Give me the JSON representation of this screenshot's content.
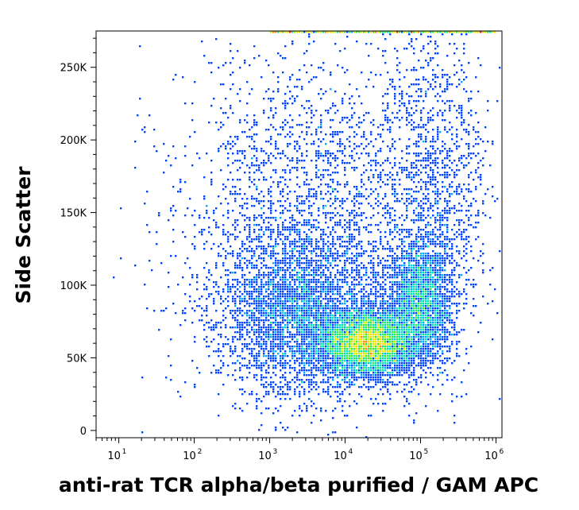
{
  "chart_data": {
    "type": "scatter",
    "subtype": "density-dot-plot",
    "xlabel": "anti-rat TCR alpha/beta purified / GAM APC",
    "ylabel": "Side Scatter",
    "x_scale": "log",
    "xlim": [
      5,
      1200000
    ],
    "ylim": [
      -5000,
      275000
    ],
    "x_ticks": [
      {
        "base": "10",
        "exp": "1",
        "value": 10
      },
      {
        "base": "10",
        "exp": "2",
        "value": 100
      },
      {
        "base": "10",
        "exp": "3",
        "value": 1000
      },
      {
        "base": "10",
        "exp": "4",
        "value": 10000
      },
      {
        "base": "10",
        "exp": "5",
        "value": 100000
      },
      {
        "base": "10",
        "exp": "6",
        "value": 1000000
      }
    ],
    "y_ticks": [
      {
        "label": "0",
        "value": 0
      },
      {
        "label": "50K",
        "value": 50000
      },
      {
        "label": "100K",
        "value": 100000
      },
      {
        "label": "150K",
        "value": 150000
      },
      {
        "label": "200K",
        "value": 200000
      },
      {
        "label": "250K",
        "value": 250000
      }
    ],
    "density_colors": [
      "#0000cc",
      "#0044ff",
      "#00aaff",
      "#00e0b0",
      "#33ee33",
      "#ccee00",
      "#ffdd00",
      "#ff8800",
      "#ee2200"
    ],
    "populations": [
      {
        "name": "",
        "log_x_center": 4.3,
        "y_center": 60000,
        "log_x_spread": 0.3,
        "y_spread": 11000,
        "count": 5000
      },
      {
        "name": "",
        "log_x_center": 5.0,
        "y_center": 88000,
        "log_x_spread": 0.22,
        "y_spread": 22000,
        "count": 2500
      },
      {
        "name": "",
        "log_x_center": 3.4,
        "y_center": 80000,
        "log_x_spread": 0.55,
        "y_spread": 28000,
        "count": 3500
      },
      {
        "name": "",
        "log_x_center": 3.6,
        "y_center": 150000,
        "log_x_spread": 0.9,
        "y_spread": 55000,
        "count": 2400
      },
      {
        "name": "",
        "log_x_center": 5.2,
        "y_center": 170000,
        "log_x_spread": 0.35,
        "y_spread": 55000,
        "count": 1200
      }
    ]
  }
}
